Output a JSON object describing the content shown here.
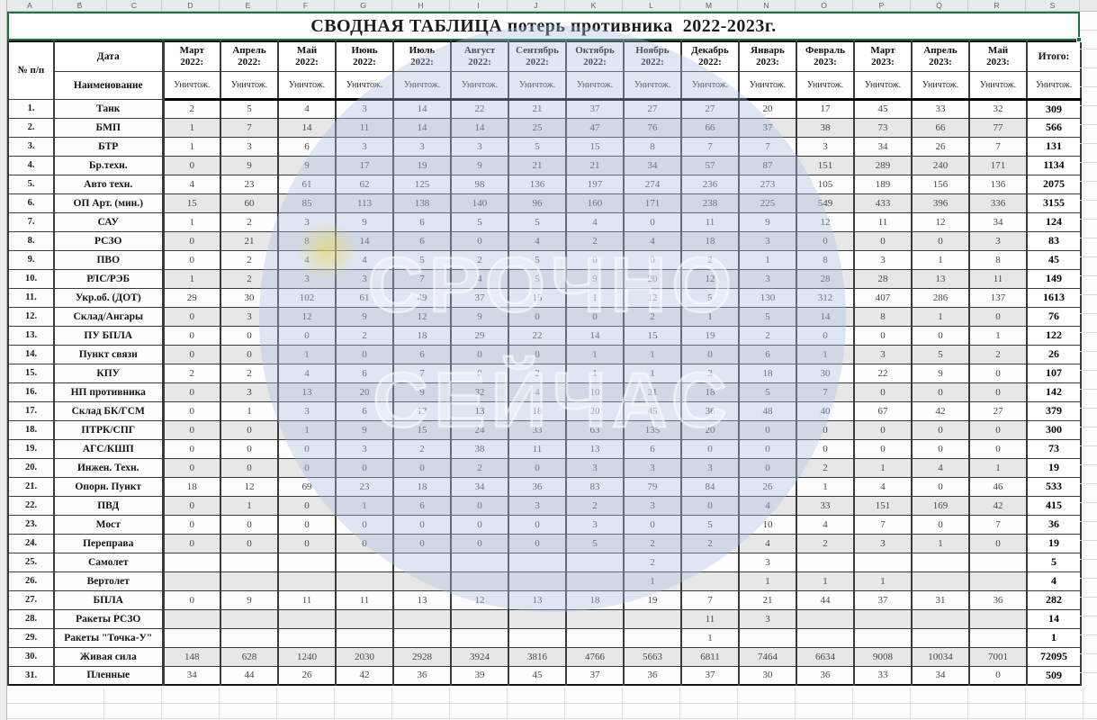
{
  "sheet": {
    "column_letters": [
      "A",
      "B",
      "C",
      "D",
      "E",
      "F",
      "G",
      "H",
      "I",
      "J",
      "K",
      "L",
      "M",
      "N",
      "O",
      "P",
      "Q",
      "R",
      "S"
    ]
  },
  "title": "СВОДНАЯ ТАБЛИЦА потерь противника  2022-2023г.",
  "header": {
    "num_label": "№ п/п",
    "date_label": "Дата",
    "name_label": "Наименование",
    "destroyed_label": "Уничтож.",
    "total_label": "Итого:",
    "months": [
      {
        "m": "Март",
        "y": "2022:"
      },
      {
        "m": "Апрель",
        "y": "2022:"
      },
      {
        "m": "Май",
        "y": "2022:"
      },
      {
        "m": "Июнь",
        "y": "2022:"
      },
      {
        "m": "Июль",
        "y": "2022:"
      },
      {
        "m": "Август",
        "y": "2022:"
      },
      {
        "m": "Сентябрь",
        "y": "2022:"
      },
      {
        "m": "Октябрь",
        "y": "2022:"
      },
      {
        "m": "Ноябрь",
        "y": "2022:"
      },
      {
        "m": "Декабрь",
        "y": "2022:"
      },
      {
        "m": "Январь",
        "y": "2023:"
      },
      {
        "m": "Февраль",
        "y": "2023:"
      },
      {
        "m": "Март",
        "y": "2023:"
      },
      {
        "m": "Апрель",
        "y": "2023:"
      },
      {
        "m": "Май",
        "y": "2023:"
      }
    ]
  },
  "rows": [
    {
      "num": "1.",
      "label": "Танк",
      "values": [
        "2",
        "5",
        "4",
        "3",
        "14",
        "22",
        "21",
        "37",
        "27",
        "27",
        "20",
        "17",
        "45",
        "33",
        "32"
      ],
      "total": "309"
    },
    {
      "num": "2.",
      "label": "БМП",
      "values": [
        "1",
        "7",
        "14",
        "11",
        "14",
        "14",
        "25",
        "47",
        "76",
        "66",
        "37",
        "38",
        "73",
        "66",
        "77"
      ],
      "total": "566"
    },
    {
      "num": "3.",
      "label": "БТР",
      "values": [
        "1",
        "3",
        "6",
        "3",
        "3",
        "3",
        "5",
        "15",
        "8",
        "7",
        "7",
        "3",
        "34",
        "26",
        "7"
      ],
      "total": "131"
    },
    {
      "num": "4.",
      "label": "Бр.техн.",
      "values": [
        "0",
        "9",
        "9",
        "17",
        "19",
        "9",
        "21",
        "21",
        "34",
        "57",
        "87",
        "151",
        "289",
        "240",
        "171"
      ],
      "total": "1134"
    },
    {
      "num": "5.",
      "label": "Авто техн.",
      "values": [
        "4",
        "23",
        "61",
        "62",
        "125",
        "98",
        "136",
        "197",
        "274",
        "236",
        "273",
        "105",
        "189",
        "156",
        "136"
      ],
      "total": "2075"
    },
    {
      "num": "6.",
      "label": "ОП Арт. (мин.)",
      "values": [
        "15",
        "60",
        "85",
        "113",
        "138",
        "140",
        "96",
        "160",
        "171",
        "238",
        "225",
        "549",
        "433",
        "396",
        "336"
      ],
      "total": "3155"
    },
    {
      "num": "7.",
      "label": "САУ",
      "values": [
        "1",
        "2",
        "3",
        "9",
        "6",
        "5",
        "5",
        "4",
        "0",
        "11",
        "9",
        "12",
        "11",
        "12",
        "34"
      ],
      "total": "124"
    },
    {
      "num": "8.",
      "label": "РСЗО",
      "values": [
        "0",
        "21",
        "8",
        "14",
        "6",
        "0",
        "4",
        "2",
        "4",
        "18",
        "3",
        "0",
        "0",
        "0",
        "3"
      ],
      "total": "83"
    },
    {
      "num": "9.",
      "label": "ПВО",
      "values": [
        "0",
        "2",
        "4",
        "4",
        "5",
        "2",
        "5",
        "0",
        "0",
        "2",
        "1",
        "8",
        "3",
        "1",
        "8"
      ],
      "total": "45"
    },
    {
      "num": "10.",
      "label": "РЛС/РЭБ",
      "values": [
        "1",
        "2",
        "3",
        "3",
        "7",
        "4",
        "5",
        "9",
        "20",
        "12",
        "3",
        "28",
        "28",
        "13",
        "11"
      ],
      "total": "149"
    },
    {
      "num": "11.",
      "label": "Укр.об. (ДОТ)",
      "values": [
        "29",
        "30",
        "102",
        "61",
        "49",
        "37",
        "15",
        "1",
        "12",
        "5",
        "130",
        "312",
        "407",
        "286",
        "137"
      ],
      "total": "1613"
    },
    {
      "num": "12.",
      "label": "Склад/Ангары",
      "values": [
        "0",
        "3",
        "12",
        "9",
        "12",
        "9",
        "0",
        "0",
        "2",
        "1",
        "5",
        "14",
        "8",
        "1",
        "0"
      ],
      "total": "76"
    },
    {
      "num": "13.",
      "label": "ПУ БПЛА",
      "values": [
        "0",
        "0",
        "0",
        "2",
        "18",
        "29",
        "22",
        "14",
        "15",
        "19",
        "2",
        "0",
        "0",
        "0",
        "1"
      ],
      "total": "122"
    },
    {
      "num": "14.",
      "label": "Пункт связи",
      "values": [
        "0",
        "0",
        "1",
        "0",
        "6",
        "0",
        "0",
        "1",
        "1",
        "0",
        "6",
        "1",
        "3",
        "5",
        "2"
      ],
      "total": "26"
    },
    {
      "num": "15.",
      "label": "КПУ",
      "values": [
        "2",
        "2",
        "4",
        "6",
        "7",
        "0",
        "2",
        "1",
        "1",
        "3",
        "18",
        "30",
        "22",
        "9",
        "0"
      ],
      "total": "107"
    },
    {
      "num": "16.",
      "label": "НП противника",
      "values": [
        "0",
        "3",
        "13",
        "20",
        "9",
        "32",
        "4",
        "10",
        "21",
        "18",
        "5",
        "7",
        "0",
        "0",
        "0"
      ],
      "total": "142"
    },
    {
      "num": "17.",
      "label": "Склад БК/ГСМ",
      "values": [
        "0",
        "1",
        "3",
        "6",
        "13",
        "13",
        "18",
        "20",
        "45",
        "36",
        "48",
        "40",
        "67",
        "42",
        "27"
      ],
      "total": "379"
    },
    {
      "num": "18.",
      "label": "ПТРК/СПГ",
      "values": [
        "0",
        "0",
        "1",
        "9",
        "15",
        "24",
        "33",
        "63",
        "135",
        "20",
        "0",
        "0",
        "0",
        "0",
        "0"
      ],
      "total": "300"
    },
    {
      "num": "19.",
      "label": "АГС/КШП",
      "values": [
        "0",
        "0",
        "0",
        "3",
        "2",
        "38",
        "11",
        "13",
        "6",
        "0",
        "0",
        "0",
        "0",
        "0",
        "0"
      ],
      "total": "73"
    },
    {
      "num": "20.",
      "label": "Инжен. Техн.",
      "values": [
        "0",
        "0",
        "0",
        "0",
        "0",
        "2",
        "0",
        "3",
        "3",
        "3",
        "0",
        "2",
        "1",
        "4",
        "1"
      ],
      "total": "19"
    },
    {
      "num": "21.",
      "label": "Опорн. Пункт",
      "values": [
        "18",
        "12",
        "69",
        "23",
        "18",
        "34",
        "36",
        "83",
        "79",
        "84",
        "26",
        "1",
        "4",
        "0",
        "46"
      ],
      "total": "533"
    },
    {
      "num": "22.",
      "label": "ПВД",
      "values": [
        "0",
        "1",
        "0",
        "1",
        "6",
        "0",
        "3",
        "2",
        "3",
        "0",
        "4",
        "33",
        "151",
        "169",
        "42"
      ],
      "total": "415"
    },
    {
      "num": "23.",
      "label": "Мост",
      "values": [
        "0",
        "0",
        "0",
        "0",
        "0",
        "0",
        "0",
        "3",
        "0",
        "5",
        "10",
        "4",
        "7",
        "0",
        "7"
      ],
      "total": "36"
    },
    {
      "num": "24.",
      "label": "Переправа",
      "values": [
        "0",
        "0",
        "0",
        "0",
        "0",
        "0",
        "0",
        "5",
        "2",
        "2",
        "4",
        "2",
        "3",
        "1",
        "0"
      ],
      "total": "19"
    },
    {
      "num": "25.",
      "label": "Самолет",
      "values": [
        "",
        "",
        "",
        "",
        "",
        "",
        "",
        "",
        "2",
        "",
        "3",
        "",
        "",
        "",
        ""
      ],
      "total": "5"
    },
    {
      "num": "26.",
      "label": "Вертолет",
      "values": [
        "",
        "",
        "",
        "",
        "",
        "",
        "",
        "",
        "1",
        "",
        "1",
        "1",
        "1",
        "",
        ""
      ],
      "total": "4"
    },
    {
      "num": "27.",
      "label": "БПЛА",
      "values": [
        "0",
        "9",
        "11",
        "11",
        "13",
        "12",
        "13",
        "18",
        "19",
        "7",
        "21",
        "44",
        "37",
        "31",
        "36"
      ],
      "total": "282"
    },
    {
      "num": "28.",
      "label": "Ракеты РСЗО",
      "values": [
        "",
        "",
        "",
        "",
        "",
        "",
        "",
        "",
        "",
        "11",
        "3",
        "",
        "",
        "",
        ""
      ],
      "total": "14"
    },
    {
      "num": "29.",
      "label": "Ракеты \"Точка-У\"",
      "values": [
        "",
        "",
        "",
        "",
        "",
        "",
        "",
        "",
        "",
        "1",
        "",
        "",
        "",
        "",
        ""
      ],
      "total": "1"
    },
    {
      "num": "30.",
      "label": "Живая сила",
      "values": [
        "148",
        "628",
        "1240",
        "2030",
        "2928",
        "3924",
        "3816",
        "4766",
        "5663",
        "6811",
        "7464",
        "6634",
        "9008",
        "10034",
        "7001"
      ],
      "total": "72095"
    },
    {
      "num": "31.",
      "label": "Пленные",
      "values": [
        "34",
        "44",
        "26",
        "42",
        "36",
        "39",
        "45",
        "37",
        "36",
        "37",
        "30",
        "36",
        "33",
        "34",
        "0"
      ],
      "total": "509"
    }
  ],
  "watermark": {
    "line1": "СРОЧНО",
    "line2": "СЕЙЧАС"
  },
  "colors": {
    "selection_green": "#1a7340",
    "row_shading": "#e7e7e7",
    "watermark_blue": "rgba(172,193,229,0.38)",
    "grid_border": "#3a3a3a"
  }
}
